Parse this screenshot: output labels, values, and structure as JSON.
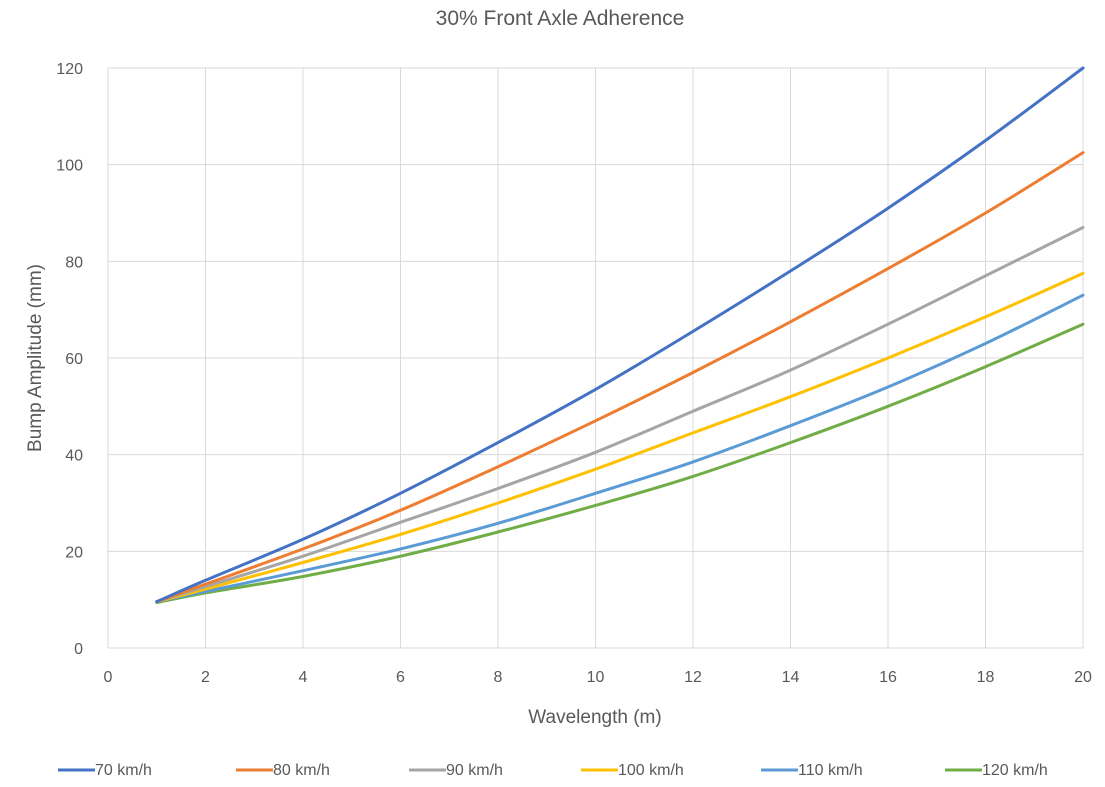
{
  "chart_data": {
    "type": "line",
    "title": "30% Front Axle Adherence",
    "xlabel": "Wavelength (m)",
    "ylabel": "Bump Amplitude (mm)",
    "xlim": [
      0,
      20
    ],
    "ylim": [
      0,
      120
    ],
    "xticks": [
      0,
      2,
      4,
      6,
      8,
      10,
      12,
      14,
      16,
      18,
      20
    ],
    "yticks": [
      0,
      20,
      40,
      60,
      80,
      100,
      120
    ],
    "grid": true,
    "legend_position": "bottom",
    "series": [
      {
        "name": "70 km/h",
        "color": "#4472C4",
        "x": [
          1,
          2,
          4,
          6,
          8,
          10,
          12,
          14,
          16,
          18,
          20
        ],
        "y": [
          9.6,
          14,
          22.5,
          32,
          42.5,
          53.5,
          65.5,
          78,
          91,
          105,
          120
        ]
      },
      {
        "name": "80 km/h",
        "color": "#ED7D31",
        "x": [
          1,
          2,
          4,
          6,
          8,
          10,
          12,
          14,
          16,
          18,
          20
        ],
        "y": [
          9.6,
          13.2,
          20.5,
          28.5,
          37.5,
          47,
          57,
          67.5,
          78.5,
          90,
          102.5
        ]
      },
      {
        "name": "90 km/h",
        "color": "#A5A5A5",
        "x": [
          1,
          2,
          4,
          6,
          8,
          10,
          12,
          14,
          16,
          18,
          20
        ],
        "y": [
          9.6,
          12.7,
          19,
          26,
          33,
          40.5,
          49,
          57.5,
          67,
          77,
          87
        ]
      },
      {
        "name": "100 km/h",
        "color": "#FFC000",
        "x": [
          1,
          2,
          4,
          6,
          8,
          10,
          12,
          14,
          16,
          18,
          20
        ],
        "y": [
          9.6,
          12.2,
          17.7,
          23.5,
          30,
          37,
          44.5,
          52,
          60,
          68.5,
          77.5
        ]
      },
      {
        "name": "110 km/h",
        "color": "#5B9BD5",
        "x": [
          1,
          2,
          4,
          6,
          8,
          10,
          12,
          14,
          16,
          18,
          20
        ],
        "y": [
          9.6,
          11.7,
          16,
          20.5,
          25.8,
          32,
          38.5,
          46,
          54,
          63,
          73
        ]
      },
      {
        "name": "120 km/h",
        "color": "#70AD47",
        "x": [
          1,
          2,
          4,
          6,
          8,
          10,
          12,
          14,
          16,
          18,
          20
        ],
        "y": [
          9.4,
          11.4,
          14.8,
          19,
          24,
          29.5,
          35.5,
          42.5,
          50,
          58.2,
          67
        ]
      }
    ]
  }
}
